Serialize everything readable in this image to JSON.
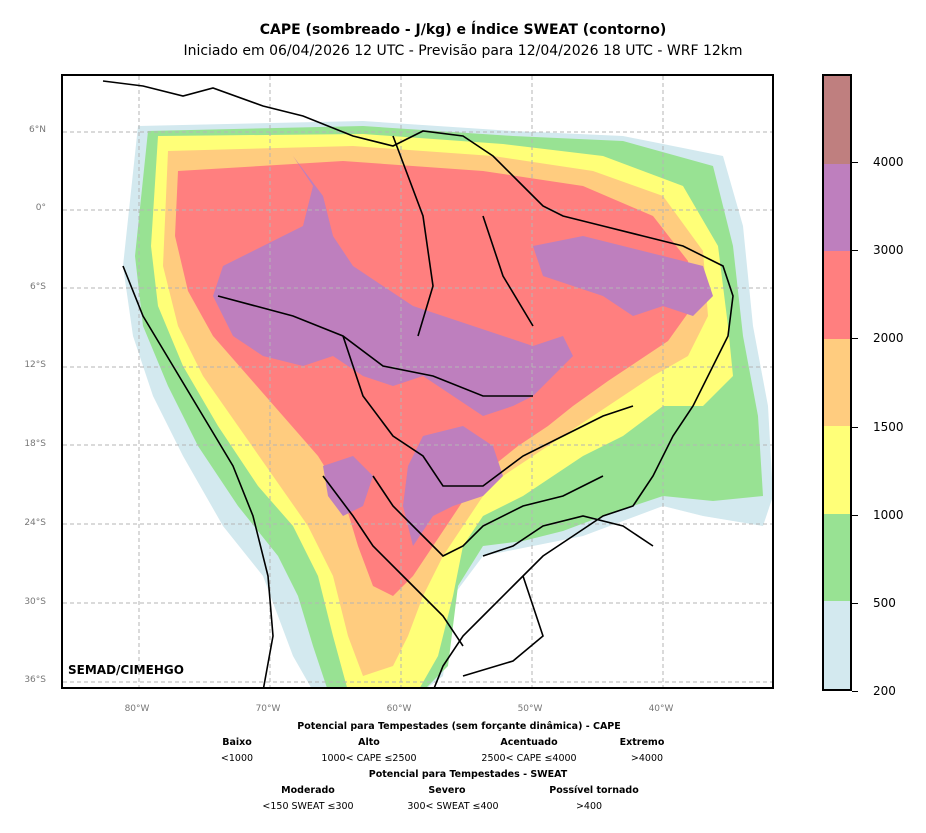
{
  "title": "CAPE (sombreado - J/kg) e Índice SWEAT (contorno)",
  "subtitle": "Iniciado em 06/04/2026 12 UTC - Previsão para 12/04/2026 18 UTC - WRF 12km",
  "credit": "SEMAD/CIMEHGO",
  "lat_labels": [
    "6°N",
    "0°",
    "6°S",
    "12°S",
    "18°S",
    "24°S",
    "30°S",
    "36°S"
  ],
  "lon_labels": [
    "80°W",
    "70°W",
    "60°W",
    "50°W",
    "40°W"
  ],
  "colorbar": {
    "ticks": [
      "200",
      "500",
      "1000",
      "1500",
      "2000",
      "3000",
      "4000"
    ],
    "colors": [
      "#d3e9ef",
      "#98e293",
      "#ffff78",
      "#ffcc7f",
      "#ff7f7f",
      "#be7fbe",
      "#bf7f7f"
    ]
  },
  "legend": {
    "cape_title": "Potencial para Tempestades (sem forçante dinâmica) - CAPE",
    "cape_levels": [
      {
        "name": "Baixo",
        "range": "<1000"
      },
      {
        "name": "Alto",
        "range": "1000< CAPE ≤2500"
      },
      {
        "name": "Acentuado",
        "range": "2500< CAPE ≤4000"
      },
      {
        "name": "Extremo",
        "range": ">4000"
      }
    ],
    "sweat_title": "Potencial para Tempestades - SWEAT",
    "sweat_levels": [
      {
        "name": "Moderado",
        "range": "<150 SWEAT ≤300"
      },
      {
        "name": "Severo",
        "range": "300< SWEAT ≤400"
      },
      {
        "name": "Possível tornado",
        "range": ">400"
      }
    ]
  }
}
